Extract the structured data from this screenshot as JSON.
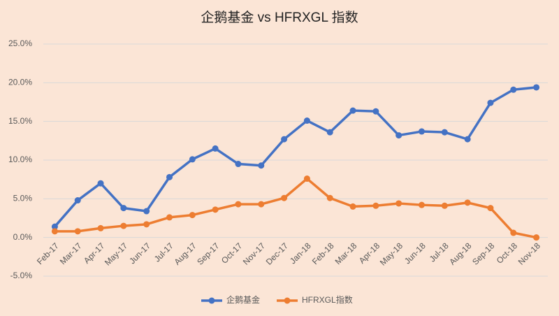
{
  "chart_data": {
    "type": "line",
    "title": "企鹅基金 vs HFRXGL 指数",
    "categories": [
      "Feb-17",
      "Mar-17",
      "Apr-17",
      "May-17",
      "Jun-17",
      "Jul-17",
      "Aug-17",
      "Sep-17",
      "Oct-17",
      "Nov-17",
      "Dec-17",
      "Jan-18",
      "Feb-18",
      "Mar-18",
      "Apr-18",
      "May-18",
      "Jun-18",
      "Jul-18",
      "Aug-18",
      "Sep-18",
      "Oct-18",
      "Nov-18"
    ],
    "series": [
      {
        "name": "企鹅基金",
        "color": "#4472c4",
        "values": [
          1.4,
          4.8,
          7.0,
          3.8,
          3.4,
          7.8,
          10.1,
          11.5,
          9.5,
          9.3,
          12.7,
          15.1,
          13.6,
          16.4,
          16.3,
          13.2,
          13.7,
          13.6,
          12.7,
          17.4,
          19.1,
          19.4
        ]
      },
      {
        "name": "HFRXGL指数",
        "color": "#ed7d31",
        "values": [
          0.8,
          0.8,
          1.2,
          1.5,
          1.7,
          2.6,
          2.9,
          3.6,
          4.3,
          4.3,
          5.1,
          7.6,
          5.1,
          4.0,
          4.1,
          4.4,
          4.2,
          4.1,
          4.5,
          3.8,
          0.6,
          0.0
        ]
      }
    ],
    "ylim": [
      -5,
      25
    ],
    "yticks": [
      {
        "value": -5,
        "label": "-5.0%"
      },
      {
        "value": 0,
        "label": "0.0%"
      },
      {
        "value": 5,
        "label": "5.0%"
      },
      {
        "value": 10,
        "label": "10.0%"
      },
      {
        "value": 15,
        "label": "15.0%"
      },
      {
        "value": 20,
        "label": "20.0%"
      },
      {
        "value": 25,
        "label": "25.0%"
      }
    ],
    "grid": true,
    "legend": "bottom"
  }
}
